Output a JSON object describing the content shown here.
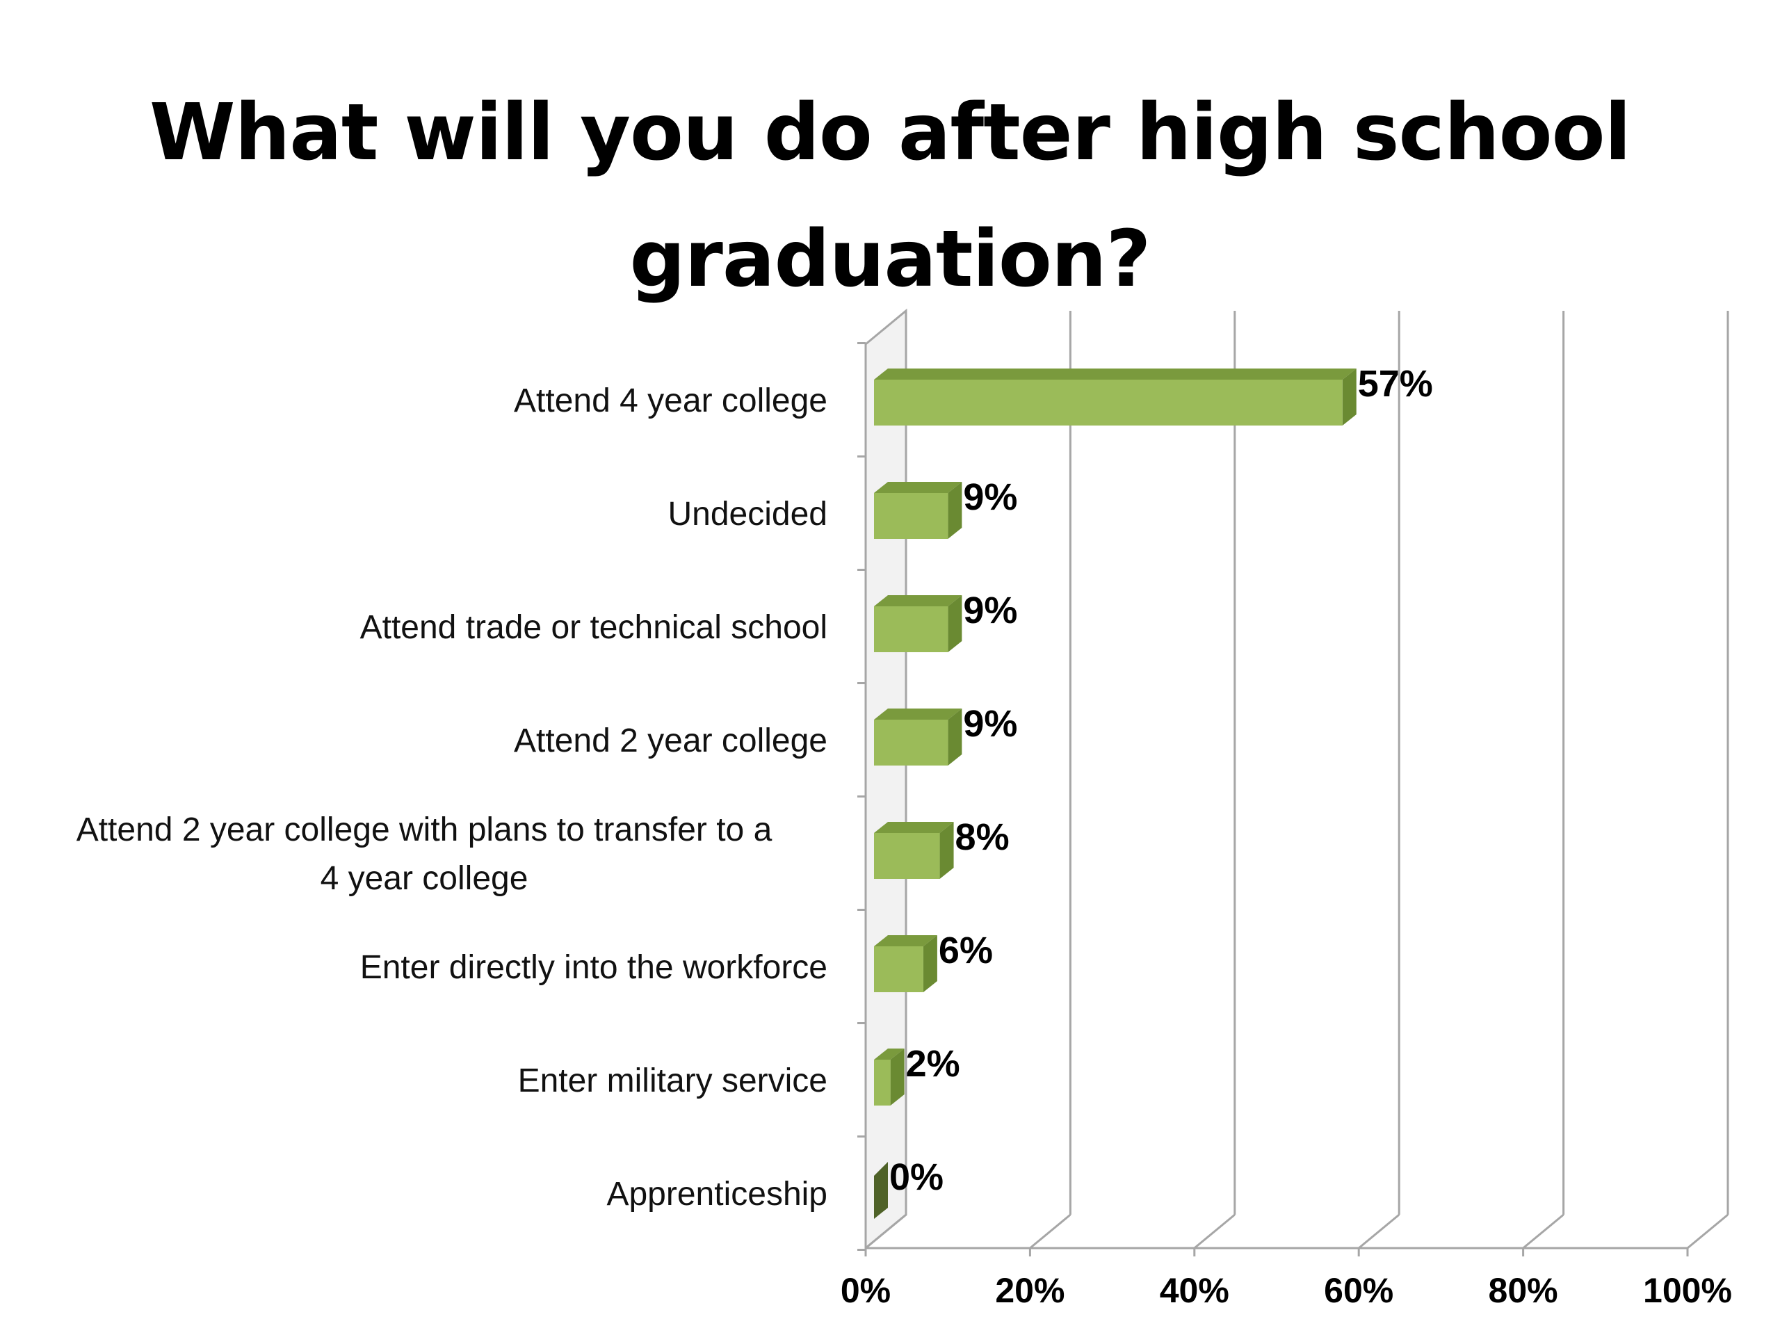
{
  "chart_data": {
    "type": "bar",
    "orientation": "horizontal",
    "style": "3d",
    "title": "What will you do after high school graduation?",
    "categories": [
      "Attend 4 year college",
      "Undecided",
      "Attend trade or technical school",
      "Attend 2 year college",
      "Attend 2 year college with plans to transfer to a 4 year college",
      "Enter directly into the workforce",
      "Enter military service",
      "Apprenticeship"
    ],
    "values": [
      57,
      9,
      9,
      9,
      8,
      6,
      2,
      0
    ],
    "data_labels": [
      "57%",
      "9%",
      "9%",
      "9%",
      "8%",
      "6%",
      "2%",
      "0%"
    ],
    "xlim": [
      0,
      100
    ],
    "x_ticks": [
      "0%",
      "20%",
      "40%",
      "60%",
      "80%",
      "100%"
    ],
    "xlabel": "",
    "ylabel": "",
    "grid": true,
    "legend": "none",
    "colors": {
      "bar_front": "#9bbb59",
      "bar_top": "#7a9a3d",
      "bar_side": "#6a8a32",
      "zero_bar": "#4f6228",
      "gridline": "#a6a6a6"
    }
  }
}
